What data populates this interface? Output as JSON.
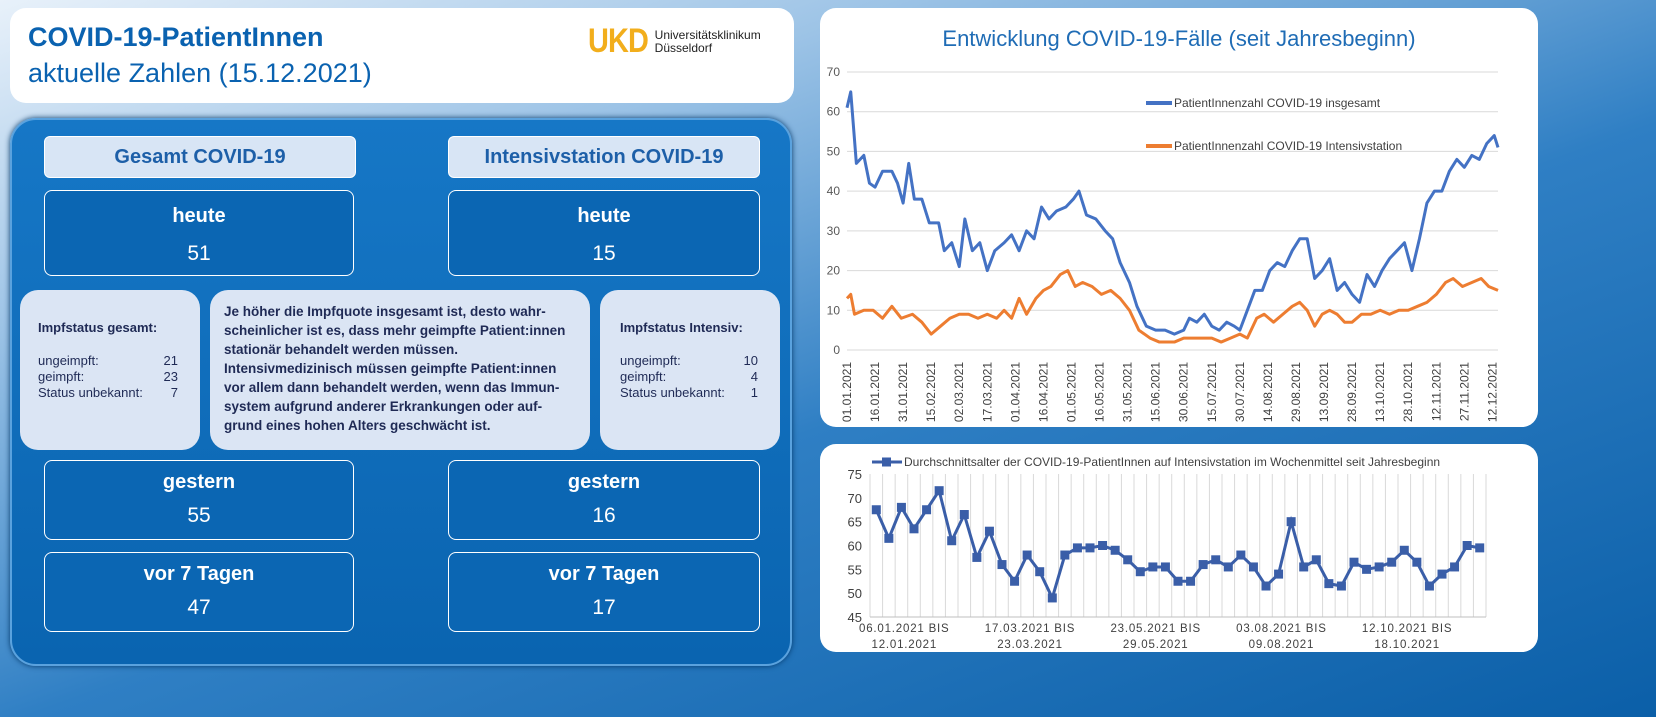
{
  "header": {
    "title": "COVID-19-PatientInnen",
    "subtitle": "aktuelle Zahlen (15.12.2021)",
    "logo": {
      "mark": "UKD",
      "line1": "Universitätsklinikum",
      "line2": "Düsseldorf"
    }
  },
  "gesamt": {
    "title": "Gesamt COVID-19",
    "today_label": "heute",
    "today": "51",
    "yesterday_label": "gestern",
    "yesterday": "55",
    "week_label": "vor 7 Tagen",
    "week": "47",
    "impf": {
      "title": "Impfstatus gesamt:",
      "rows": [
        {
          "label": "ungeimpft:",
          "value": "21"
        },
        {
          "label": "geimpft:",
          "value": "23"
        },
        {
          "label": "Status unbekannt:",
          "value": "7"
        }
      ]
    }
  },
  "intensiv": {
    "title": "Intensivstation COVID-19",
    "today_label": "heute",
    "today": "15",
    "yesterday_label": "gestern",
    "yesterday": "16",
    "week_label": "vor 7 Tagen",
    "week": "17",
    "impf": {
      "title": "Impfstatus Intensiv:",
      "rows": [
        {
          "label": "ungeimpft:",
          "value": "10"
        },
        {
          "label": "geimpft:",
          "value": "4"
        },
        {
          "label": "Status unbekannt:",
          "value": "1"
        }
      ]
    }
  },
  "note": "Je höher die Impfquote insgesamt ist, desto wahr-scheinlicher ist es, dass mehr geimpfte Patient:innen stationär behandelt werden müssen. Intensivmedizinisch müssen geimpfte Patient:innen vor allem dann behandelt werden, wenn das Immun-system aufgrund anderer Erkrankungen oder auf-grund eines hohen Alters geschwächt ist.",
  "colors": {
    "blue": "#4472c4",
    "orange": "#ed7d31",
    "age": "#3a5ea8"
  },
  "chart_data": [
    {
      "type": "line",
      "title": "Entwicklung COVID-19-Fälle (seit Jahresbeginn)",
      "ylim": [
        0,
        70
      ],
      "yticks": [
        0,
        10,
        20,
        30,
        40,
        50,
        60,
        70
      ],
      "legend": "top-right",
      "x_unit": "days since 01.01.2021",
      "xticklabels": [
        "01.01.2021",
        "16.01.2021",
        "31.01.2021",
        "15.02.2021",
        "02.03.2021",
        "17.03.2021",
        "01.04.2021",
        "16.04.2021",
        "01.05.2021",
        "16.05.2021",
        "31.05.2021",
        "15.06.2021",
        "30.06.2021",
        "15.07.2021",
        "30.07.2021",
        "14.08.2021",
        "29.08.2021",
        "13.09.2021",
        "28.09.2021",
        "13.10.2021",
        "28.10.2021",
        "12.11.2021",
        "27.11.2021",
        "12.12.2021"
      ],
      "series": [
        {
          "name": "PatientInnenzahl COVID-19 insgesamt",
          "points": [
            [
              0,
              61
            ],
            [
              2,
              65
            ],
            [
              5,
              47
            ],
            [
              9,
              49
            ],
            [
              12,
              42
            ],
            [
              15,
              41
            ],
            [
              19,
              45
            ],
            [
              24,
              45
            ],
            [
              27,
              42
            ],
            [
              30,
              37
            ],
            [
              33,
              47
            ],
            [
              36,
              38
            ],
            [
              40,
              38
            ],
            [
              44,
              32
            ],
            [
              49,
              32
            ],
            [
              52,
              25
            ],
            [
              56,
              27
            ],
            [
              60,
              21
            ],
            [
              63,
              33
            ],
            [
              67,
              25
            ],
            [
              71,
              27
            ],
            [
              75,
              20
            ],
            [
              79,
              25
            ],
            [
              84,
              27
            ],
            [
              88,
              29
            ],
            [
              92,
              25
            ],
            [
              96,
              30
            ],
            [
              100,
              28
            ],
            [
              104,
              36
            ],
            [
              108,
              33
            ],
            [
              112,
              35
            ],
            [
              117,
              36
            ],
            [
              121,
              38
            ],
            [
              124,
              40
            ],
            [
              128,
              34
            ],
            [
              133,
              33
            ],
            [
              138,
              30
            ],
            [
              142,
              28
            ],
            [
              146,
              22
            ],
            [
              151,
              17
            ],
            [
              155,
              11
            ],
            [
              160,
              6
            ],
            [
              165,
              5
            ],
            [
              170,
              5
            ],
            [
              175,
              4
            ],
            [
              180,
              5
            ],
            [
              183,
              8
            ],
            [
              187,
              7
            ],
            [
              191,
              9
            ],
            [
              195,
              6
            ],
            [
              199,
              5
            ],
            [
              203,
              7
            ],
            [
              207,
              6
            ],
            [
              210,
              5
            ],
            [
              214,
              10
            ],
            [
              218,
              15
            ],
            [
              222,
              15
            ],
            [
              226,
              20
            ],
            [
              230,
              22
            ],
            [
              234,
              21
            ],
            [
              238,
              25
            ],
            [
              242,
              28
            ],
            [
              246,
              28
            ],
            [
              250,
              18
            ],
            [
              254,
              20
            ],
            [
              258,
              23
            ],
            [
              262,
              15
            ],
            [
              266,
              17
            ],
            [
              270,
              14
            ],
            [
              274,
              12
            ],
            [
              278,
              19
            ],
            [
              282,
              16
            ],
            [
              286,
              20
            ],
            [
              290,
              23
            ],
            [
              294,
              25
            ],
            [
              298,
              27
            ],
            [
              302,
              20
            ],
            [
              306,
              28
            ],
            [
              310,
              37
            ],
            [
              314,
              40
            ],
            [
              318,
              40
            ],
            [
              322,
              45
            ],
            [
              326,
              48
            ],
            [
              330,
              46
            ],
            [
              334,
              49
            ],
            [
              338,
              48
            ],
            [
              342,
              52
            ],
            [
              346,
              54
            ],
            [
              348,
              51
            ]
          ]
        },
        {
          "name": "PatientInnenzahl COVID-19 Intensivstation",
          "points": [
            [
              0,
              13
            ],
            [
              2,
              14
            ],
            [
              4,
              9
            ],
            [
              9,
              10
            ],
            [
              14,
              10
            ],
            [
              19,
              8
            ],
            [
              24,
              11
            ],
            [
              29,
              8
            ],
            [
              35,
              9
            ],
            [
              40,
              7
            ],
            [
              45,
              4
            ],
            [
              50,
              6
            ],
            [
              55,
              8
            ],
            [
              60,
              9
            ],
            [
              65,
              9
            ],
            [
              70,
              8
            ],
            [
              75,
              9
            ],
            [
              80,
              8
            ],
            [
              84,
              10
            ],
            [
              88,
              8
            ],
            [
              92,
              13
            ],
            [
              96,
              9
            ],
            [
              101,
              13
            ],
            [
              105,
              15
            ],
            [
              109,
              16
            ],
            [
              114,
              19
            ],
            [
              118,
              20
            ],
            [
              122,
              16
            ],
            [
              126,
              17
            ],
            [
              131,
              16
            ],
            [
              136,
              14
            ],
            [
              141,
              15
            ],
            [
              146,
              13
            ],
            [
              151,
              10
            ],
            [
              156,
              5
            ],
            [
              162,
              3
            ],
            [
              167,
              2
            ],
            [
              175,
              2
            ],
            [
              180,
              3
            ],
            [
              185,
              3
            ],
            [
              190,
              3
            ],
            [
              195,
              3
            ],
            [
              200,
              2
            ],
            [
              205,
              3
            ],
            [
              210,
              4
            ],
            [
              214,
              3
            ],
            [
              219,
              8
            ],
            [
              223,
              9
            ],
            [
              228,
              7
            ],
            [
              233,
              9
            ],
            [
              238,
              11
            ],
            [
              242,
              12
            ],
            [
              246,
              10
            ],
            [
              250,
              6
            ],
            [
              254,
              9
            ],
            [
              258,
              10
            ],
            [
              262,
              9
            ],
            [
              266,
              7
            ],
            [
              270,
              7
            ],
            [
              275,
              9
            ],
            [
              280,
              9
            ],
            [
              285,
              10
            ],
            [
              290,
              9
            ],
            [
              295,
              10
            ],
            [
              300,
              10
            ],
            [
              305,
              11
            ],
            [
              310,
              12
            ],
            [
              315,
              14
            ],
            [
              320,
              17
            ],
            [
              324,
              18
            ],
            [
              329,
              16
            ],
            [
              334,
              17
            ],
            [
              339,
              18
            ],
            [
              343,
              16
            ],
            [
              348,
              15
            ]
          ]
        }
      ]
    },
    {
      "type": "line",
      "title": "",
      "legend": "top",
      "ylim": [
        45,
        75
      ],
      "yticks": [
        45,
        50,
        55,
        60,
        65,
        70,
        75
      ],
      "series": [
        {
          "name": "Durchschnittsalter der COVID-19-PatientInnen auf Intensivstation im Wochenmittel seit Jahresbeginn",
          "values": [
            67.5,
            61.5,
            68,
            63.5,
            67.5,
            71.5,
            61,
            66.5,
            57.5,
            63,
            56,
            52.5,
            58,
            54.5,
            49,
            58,
            59.5,
            59.5,
            60,
            59,
            57,
            54.5,
            55.5,
            55.5,
            52.5,
            52.5,
            56,
            57,
            55.5,
            58,
            55.5,
            51.5,
            54,
            65,
            55.5,
            57,
            52,
            51.5,
            56.5,
            55,
            55.5,
            56.5,
            59,
            56.5,
            51.5,
            54,
            55.5,
            60,
            59.5
          ]
        }
      ],
      "xticklabels": [
        {
          "index": 0,
          "line1": "06.01.2021 BIS",
          "line2": "12.01.2021"
        },
        {
          "index": 10,
          "line1": "17.03.2021 BIS",
          "line2": "23.03.2021"
        },
        {
          "index": 20,
          "line1": "23.05.2021 BIS",
          "line2": "29.05.2021"
        },
        {
          "index": 30,
          "line1": "03.08.2021 BIS",
          "line2": "09.08.2021"
        },
        {
          "index": 40,
          "line1": "12.10.2021 BIS",
          "line2": "18.10.2021"
        }
      ]
    }
  ]
}
